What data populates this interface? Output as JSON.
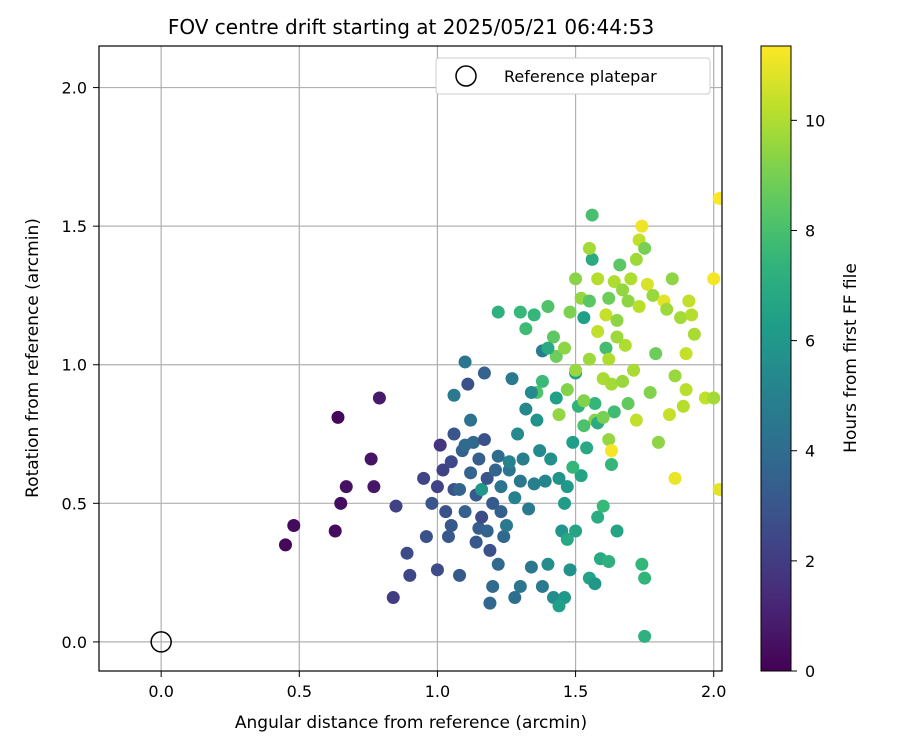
{
  "chart_data": {
    "type": "scatter",
    "title": "FOV centre drift starting at 2025/05/21 06:44:53",
    "xlabel": "Angular distance from reference (arcmin)",
    "ylabel": "Rotation from reference (arcmin)",
    "xlim": [
      -0.225,
      2.03
    ],
    "ylim": [
      -0.105,
      2.15
    ],
    "xticks": [
      0.0,
      0.5,
      1.0,
      1.5,
      2.0
    ],
    "yticks": [
      0.0,
      0.5,
      1.0,
      1.5,
      2.0
    ],
    "grid": true,
    "legend": {
      "position": "top-right",
      "entries": [
        {
          "label": "Reference platepar",
          "marker": "open-circle"
        }
      ]
    },
    "reference_point": {
      "x": 0.0,
      "y": 0.0
    },
    "colorbar": {
      "label": "Hours from first FF file",
      "colormap": "viridis",
      "range": [
        0,
        11.35
      ],
      "ticks": [
        0,
        2,
        4,
        6,
        8,
        10
      ]
    },
    "series": [
      {
        "color_variable": "hours",
        "points": [
          [
            0.45,
            0.35,
            0.2
          ],
          [
            0.48,
            0.42,
            0.3
          ],
          [
            0.63,
            0.4,
            0.35
          ],
          [
            0.64,
            0.81,
            0.2
          ],
          [
            0.65,
            0.5,
            0.4
          ],
          [
            0.67,
            0.56,
            0.5
          ],
          [
            0.76,
            0.66,
            0.6
          ],
          [
            0.77,
            0.56,
            0.7
          ],
          [
            0.79,
            0.88,
            0.8
          ],
          [
            0.84,
            0.16,
            2.0
          ],
          [
            0.85,
            0.49,
            2.2
          ],
          [
            0.89,
            0.32,
            2.6
          ],
          [
            0.9,
            0.24,
            2.4
          ],
          [
            0.95,
            0.59,
            2.3
          ],
          [
            0.96,
            0.38,
            2.8
          ],
          [
            0.98,
            0.5,
            3.0
          ],
          [
            1.0,
            0.56,
            2.2
          ],
          [
            1.0,
            0.26,
            2.6
          ],
          [
            1.01,
            0.71,
            1.7
          ],
          [
            1.02,
            0.62,
            2.2
          ],
          [
            1.03,
            0.47,
            2.8
          ],
          [
            1.04,
            0.38,
            3.1
          ],
          [
            1.05,
            0.65,
            2.5
          ],
          [
            1.05,
            0.42,
            3.1
          ],
          [
            1.06,
            0.55,
            2.8
          ],
          [
            1.06,
            0.75,
            3.0
          ],
          [
            1.06,
            0.89,
            4.6
          ],
          [
            1.08,
            0.24,
            3.2
          ],
          [
            1.08,
            0.55,
            3.6
          ],
          [
            1.09,
            0.69,
            3.5
          ],
          [
            1.1,
            1.01,
            4.4
          ],
          [
            1.1,
            0.47,
            3.5
          ],
          [
            1.11,
            0.93,
            2.8
          ],
          [
            1.12,
            0.8,
            4.3
          ],
          [
            1.12,
            0.61,
            3.6
          ],
          [
            1.13,
            0.72,
            3.8
          ],
          [
            1.14,
            0.53,
            3.2
          ],
          [
            1.15,
            0.41,
            3.3
          ],
          [
            1.15,
            0.66,
            3.4
          ],
          [
            1.16,
            0.45,
            2.6
          ],
          [
            1.16,
            0.55,
            6.0
          ],
          [
            1.17,
            0.97,
            3.5
          ],
          [
            1.17,
            0.73,
            2.8
          ],
          [
            1.18,
            0.4,
            3.6
          ],
          [
            1.18,
            0.59,
            3.0
          ],
          [
            1.19,
            0.33,
            2.8
          ],
          [
            1.19,
            0.14,
            3.8
          ],
          [
            1.2,
            0.2,
            3.9
          ],
          [
            1.2,
            0.5,
            3.2
          ],
          [
            1.21,
            0.62,
            3.6
          ],
          [
            1.22,
            0.67,
            4.0
          ],
          [
            1.22,
            0.28,
            3.9
          ],
          [
            1.23,
            0.56,
            4.3
          ],
          [
            1.23,
            0.47,
            3.4
          ],
          [
            1.24,
            0.38,
            3.8
          ],
          [
            1.25,
            0.42,
            4.6
          ],
          [
            1.26,
            0.62,
            4.4
          ],
          [
            1.27,
            0.95,
            4.6
          ],
          [
            1.28,
            0.16,
            4.1
          ],
          [
            1.28,
            0.52,
            5.0
          ],
          [
            1.29,
            0.75,
            5.4
          ],
          [
            1.3,
            0.2,
            4.4
          ],
          [
            1.3,
            0.58,
            4.5
          ],
          [
            1.31,
            0.66,
            4.8
          ],
          [
            1.32,
            0.84,
            5.3
          ],
          [
            1.33,
            0.48,
            4.6
          ],
          [
            1.34,
            0.27,
            4.5
          ],
          [
            1.35,
            0.57,
            4.9
          ],
          [
            1.36,
            0.8,
            5.8
          ],
          [
            1.37,
            0.69,
            5.4
          ],
          [
            1.38,
            0.2,
            4.6
          ],
          [
            1.38,
            1.05,
            4.8
          ],
          [
            1.39,
            0.58,
            5.2
          ],
          [
            1.4,
            0.28,
            5.6
          ],
          [
            1.41,
            0.66,
            5.7
          ],
          [
            1.42,
            0.16,
            5.5
          ],
          [
            1.43,
            0.88,
            6.4
          ],
          [
            1.44,
            0.59,
            5.8
          ],
          [
            1.45,
            0.4,
            5.9
          ],
          [
            1.46,
            0.16,
            6.1
          ],
          [
            1.47,
            0.56,
            6.1
          ],
          [
            1.48,
            0.26,
            5.8
          ],
          [
            1.49,
            0.72,
            6.3
          ],
          [
            1.5,
            0.97,
            6.4
          ],
          [
            1.5,
            0.4,
            6.6
          ],
          [
            1.51,
            0.85,
            7.3
          ],
          [
            1.52,
            0.6,
            6.6
          ],
          [
            1.53,
            1.17,
            6.4
          ],
          [
            1.54,
            0.7,
            6.8
          ],
          [
            1.55,
            0.23,
            6.5
          ],
          [
            1.56,
            1.38,
            6.9
          ],
          [
            1.57,
            0.86,
            7.5
          ],
          [
            1.58,
            0.45,
            7.0
          ],
          [
            1.59,
            0.3,
            6.9
          ],
          [
            1.6,
            0.49,
            7.6
          ],
          [
            1.61,
            1.06,
            7.9
          ],
          [
            1.62,
            0.29,
            7.2
          ],
          [
            1.63,
            0.64,
            7.5
          ],
          [
            1.64,
            0.83,
            7.8
          ],
          [
            1.65,
            0.4,
            6.6
          ],
          [
            1.74,
            0.28,
            7.5
          ],
          [
            1.75,
            0.02,
            7.2
          ],
          [
            1.75,
            0.23,
            7.4
          ],
          [
            1.3,
            1.19,
            7.6
          ],
          [
            1.32,
            1.13,
            7.8
          ],
          [
            1.35,
            1.18,
            7.5
          ],
          [
            1.36,
            0.9,
            8.2
          ],
          [
            1.38,
            0.94,
            7.7
          ],
          [
            1.4,
            1.21,
            8.2
          ],
          [
            1.42,
            1.1,
            8.5
          ],
          [
            1.43,
            1.03,
            8.8
          ],
          [
            1.44,
            0.82,
            9.5
          ],
          [
            1.46,
            1.06,
            9.4
          ],
          [
            1.47,
            0.91,
            9.2
          ],
          [
            1.48,
            1.19,
            9.1
          ],
          [
            1.5,
            1.31,
            9.3
          ],
          [
            1.5,
            0.98,
            9.6
          ],
          [
            1.52,
            1.24,
            9.5
          ],
          [
            1.53,
            0.87,
            9.2
          ],
          [
            1.55,
            1.42,
            9.8
          ],
          [
            1.55,
            1.02,
            9.7
          ],
          [
            1.56,
            1.54,
            8.0
          ],
          [
            1.57,
            0.8,
            9.3
          ],
          [
            1.58,
            1.12,
            10.3
          ],
          [
            1.58,
            1.31,
            10.1
          ],
          [
            1.6,
            0.95,
            9.9
          ],
          [
            1.61,
            1.18,
            10.4
          ],
          [
            1.62,
            1.02,
            10.0
          ],
          [
            1.63,
            0.93,
            9.8
          ],
          [
            1.64,
            1.3,
            10.0
          ],
          [
            1.65,
            1.16,
            9.4
          ],
          [
            1.66,
            1.36,
            8.4
          ],
          [
            1.67,
            0.94,
            9.6
          ],
          [
            1.68,
            1.07,
            10.0
          ],
          [
            1.69,
            1.23,
            9.4
          ],
          [
            1.7,
            1.31,
            10.0
          ],
          [
            1.72,
            1.38,
            9.7
          ],
          [
            1.73,
            1.45,
            10.3
          ],
          [
            1.73,
            1.21,
            10.2
          ],
          [
            1.74,
            1.5,
            11.1
          ],
          [
            1.75,
            1.42,
            9.0
          ],
          [
            1.76,
            1.29,
            10.7
          ],
          [
            1.77,
            0.9,
            9.2
          ],
          [
            1.78,
            1.25,
            9.6
          ],
          [
            1.79,
            1.04,
            8.8
          ],
          [
            1.8,
            0.72,
            9.4
          ],
          [
            1.82,
            1.23,
            10.9
          ],
          [
            1.83,
            1.2,
            9.7
          ],
          [
            1.84,
            0.82,
            10.4
          ],
          [
            1.85,
            1.31,
            9.4
          ],
          [
            1.86,
            0.96,
            9.6
          ],
          [
            1.86,
            0.59,
            11.0
          ],
          [
            1.88,
            1.17,
            9.8
          ],
          [
            1.89,
            0.85,
            10.1
          ],
          [
            1.9,
            1.04,
            10.4
          ],
          [
            1.9,
            0.91,
            10.2
          ],
          [
            1.91,
            1.23,
            10.3
          ],
          [
            1.92,
            1.18,
            10.1
          ],
          [
            1.93,
            1.11,
            9.9
          ],
          [
            1.97,
            0.88,
            10.3
          ],
          [
            2.0,
            0.88,
            9.8
          ],
          [
            2.0,
            1.31,
            11.2
          ],
          [
            2.02,
            0.55,
            10.9
          ],
          [
            2.02,
            1.6,
            11.3
          ],
          [
            1.44,
            0.13,
            6.4
          ],
          [
            1.47,
            0.37,
            6.8
          ],
          [
            1.49,
            0.63,
            7.5
          ],
          [
            1.53,
            0.78,
            8.1
          ],
          [
            1.58,
            0.79,
            7.0
          ],
          [
            1.6,
            0.81,
            9.0
          ],
          [
            1.62,
            0.73,
            9.5
          ],
          [
            1.63,
            0.69,
            11.2
          ],
          [
            1.57,
            0.21,
            6.0
          ],
          [
            1.62,
            1.24,
            8.8
          ],
          [
            1.65,
            1.1,
            9.7
          ],
          [
            1.67,
            1.27,
            9.5
          ],
          [
            1.69,
            0.86,
            8.6
          ],
          [
            1.71,
            0.98,
            9.9
          ],
          [
            1.72,
            0.8,
            10.3
          ],
          [
            1.46,
            0.5,
            6.2
          ],
          [
            1.26,
            0.65,
            5.1
          ],
          [
            1.1,
            0.71,
            3.9
          ],
          [
            1.14,
            0.36,
            3.1
          ],
          [
            1.34,
            0.9,
            5.4
          ],
          [
            1.4,
            1.06,
            6.9
          ],
          [
            1.22,
            1.19,
            7.2
          ],
          [
            1.55,
            1.23,
            8.4
          ]
        ]
      }
    ]
  }
}
